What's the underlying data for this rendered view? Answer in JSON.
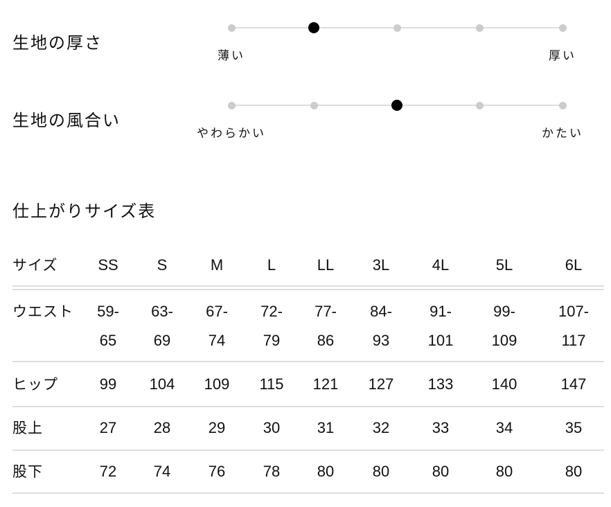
{
  "fabric": [
    {
      "title": "生地の厚さ",
      "left_label": "薄い",
      "right_label": "厚い",
      "steps": 5,
      "selected_index": 1
    },
    {
      "title": "生地の風合い",
      "left_label": "やわらかい",
      "right_label": "かたい",
      "steps": 5,
      "selected_index": 2
    }
  ],
  "size_table": {
    "title": "仕上がりサイズ表",
    "header_label": "サイズ",
    "columns": [
      "SS",
      "S",
      "M",
      "L",
      "LL",
      "3L",
      "4L",
      "5L",
      "6L"
    ],
    "rows": [
      {
        "label": "ウエスト",
        "values": [
          [
            "59-",
            "65"
          ],
          [
            "63-",
            "69"
          ],
          [
            "67-",
            "74"
          ],
          [
            "72-",
            "79"
          ],
          [
            "77-",
            "86"
          ],
          [
            "84-",
            "93"
          ],
          [
            "91-",
            "101"
          ],
          [
            "99-",
            "109"
          ],
          [
            "107-",
            "117"
          ]
        ]
      },
      {
        "label": "ヒップ",
        "values": [
          "99",
          "104",
          "109",
          "115",
          "121",
          "127",
          "133",
          "140",
          "147"
        ]
      },
      {
        "label": "股上",
        "values": [
          "27",
          "28",
          "29",
          "30",
          "31",
          "32",
          "33",
          "34",
          "35"
        ]
      },
      {
        "label": "股下",
        "values": [
          "72",
          "74",
          "76",
          "78",
          "80",
          "80",
          "80",
          "80",
          "80"
        ]
      }
    ]
  },
  "colors": {
    "selected_dot": "#000000",
    "dot": "#cccccc",
    "track": "#dddddd"
  }
}
